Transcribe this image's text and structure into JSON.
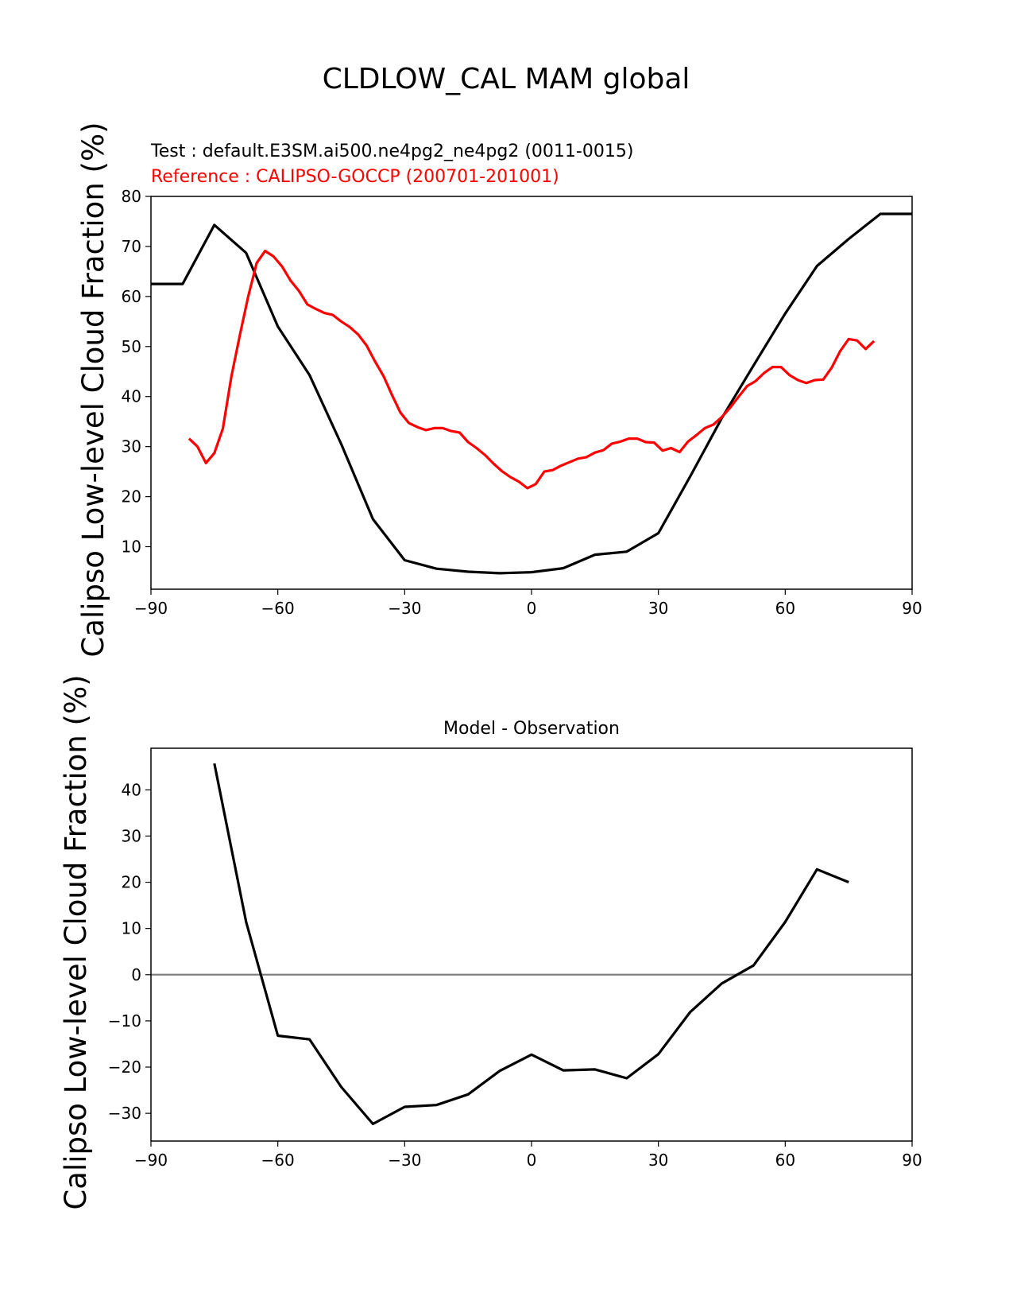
{
  "figure": {
    "suptitle": "CLDLOW_CAL MAM global"
  },
  "chart_data": [
    {
      "type": "line",
      "test_label": "Test : default.E3SM.ai500.ne4pg2_ne4pg2 (0011-0015)",
      "reference_label": "Reference : CALIPSO-GOCCP (200701-201001)",
      "ylabel": "Calipso Low-level Cloud Fraction (%)",
      "xlim": [
        -90,
        90
      ],
      "ylim": [
        1.5,
        80
      ],
      "xticks": [
        -90,
        -60,
        -30,
        0,
        30,
        60,
        90
      ],
      "xtick_labels": [
        "−90",
        "−60",
        "−30",
        "0",
        "30",
        "60",
        "90"
      ],
      "yticks": [
        10,
        20,
        30,
        40,
        50,
        60,
        70,
        80
      ],
      "grid": false,
      "series": [
        {
          "name": "Test : default.E3SM.ai500.ne4pg2_ne4pg2 (0011-0015)",
          "color": "#000000",
          "x": [
            -90,
            -82.5,
            -75,
            -67.5,
            -60,
            -52.5,
            -45,
            -37.5,
            -30,
            -22.5,
            -15,
            -7.5,
            0,
            7.5,
            15,
            22.5,
            30,
            37.5,
            45,
            52.5,
            60,
            67.5,
            75,
            82.5,
            90
          ],
          "y": [
            62.5,
            62.5,
            74.3,
            68.7,
            54,
            44.3,
            30.5,
            15.5,
            7.3,
            5.6,
            5.0,
            4.7,
            4.9,
            5.7,
            8.4,
            9.0,
            12.7,
            24.0,
            35.7,
            46.2,
            56.6,
            66.1,
            71.5,
            76.5,
            76.5
          ]
        },
        {
          "name": "Reference : CALIPSO-GOCCP (200701-201001)",
          "color": "#ff0000",
          "x": [
            -81,
            -79,
            -77,
            -75,
            -73,
            -71,
            -69,
            -67,
            -65,
            -63,
            -61,
            -59,
            -57,
            -55,
            -53,
            -51,
            -49,
            -47,
            -45,
            -43,
            -41,
            -39,
            -37,
            -35,
            -33,
            -31,
            -29,
            -27,
            -25,
            -23,
            -21,
            -19,
            -17,
            -15,
            -13,
            -11,
            -9,
            -7,
            -5,
            -3,
            -1,
            1,
            3,
            5,
            7,
            9,
            11,
            13,
            15,
            17,
            19,
            21,
            23,
            25,
            27,
            29,
            31,
            33,
            35,
            37,
            39,
            41,
            43,
            45,
            47,
            49,
            51,
            53,
            55,
            57,
            59,
            61,
            63,
            65,
            67,
            69,
            71,
            73,
            75,
            77,
            79,
            81
          ],
          "y": [
            31.6,
            30.0,
            26.7,
            28.7,
            33.6,
            43.9,
            52.2,
            60.0,
            66.7,
            69.1,
            68.0,
            66.0,
            63.2,
            61.1,
            58.4,
            57.5,
            56.7,
            56.3,
            55.0,
            53.9,
            52.4,
            50.2,
            47.0,
            44.1,
            40.3,
            36.8,
            34.7,
            33.9,
            33.3,
            33.7,
            33.7,
            33.1,
            32.8,
            30.9,
            29.7,
            28.3,
            26.6,
            25.1,
            23.9,
            23.0,
            21.7,
            22.5,
            25.0,
            25.3,
            26.2,
            26.9,
            27.6,
            27.9,
            28.8,
            29.3,
            30.6,
            31.0,
            31.6,
            31.6,
            30.9,
            30.8,
            29.2,
            29.7,
            28.9,
            31.0,
            32.3,
            33.7,
            34.4,
            35.9,
            37.8,
            40.0,
            42.1,
            43.1,
            44.7,
            45.9,
            45.9,
            44.3,
            43.3,
            42.7,
            43.3,
            43.4,
            45.8,
            49.1,
            51.5,
            51.2,
            49.5,
            51.1
          ]
        }
      ]
    },
    {
      "type": "line",
      "title": "Model - Observation",
      "ylabel": "Calipso Low-level Cloud Fraction (%)",
      "xlim": [
        -90,
        90
      ],
      "ylim": [
        -36,
        49
      ],
      "xticks": [
        -90,
        -60,
        -30,
        0,
        30,
        60,
        90
      ],
      "xtick_labels": [
        "−90",
        "−60",
        "−30",
        "0",
        "30",
        "60",
        "90"
      ],
      "yticks": [
        -30,
        -20,
        -10,
        0,
        10,
        20,
        30,
        40
      ],
      "ytick_labels": [
        "−30",
        "−20",
        "−10",
        "0",
        "10",
        "20",
        "30",
        "40"
      ],
      "zero_line_color": "#808080",
      "grid": false,
      "series": [
        {
          "color": "#000000",
          "x": [
            -75,
            -67.5,
            -60,
            -52.5,
            -45,
            -37.5,
            -30,
            -22.5,
            -15,
            -7.5,
            0,
            7.5,
            15,
            22.5,
            30,
            37.5,
            45,
            52.5,
            60,
            67.5,
            75
          ],
          "y": [
            45.7,
            11.4,
            -13.2,
            -14.0,
            -24.3,
            -32.3,
            -28.6,
            -28.2,
            -25.9,
            -20.8,
            -17.3,
            -20.7,
            -20.5,
            -22.4,
            -17.2,
            -8.1,
            -1.9,
            2.0,
            11.4,
            22.8,
            20.0
          ]
        }
      ]
    }
  ]
}
